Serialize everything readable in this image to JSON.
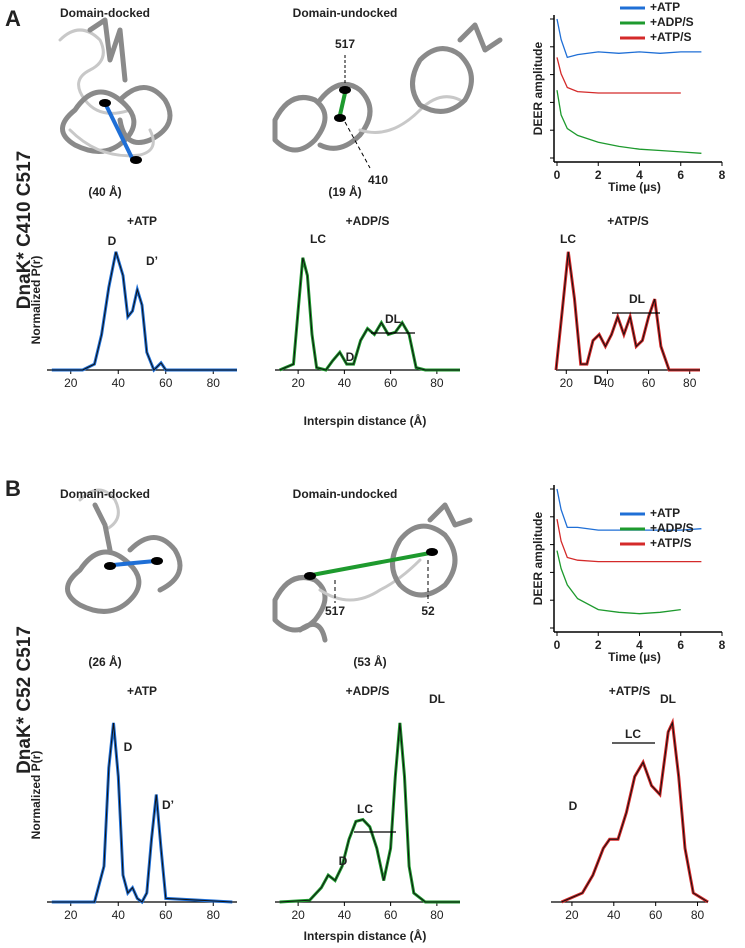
{
  "panels": [
    {
      "letter": "A",
      "construct": "DnaK* C410 C517",
      "structures": [
        {
          "title": "Domain-docked",
          "distance": "(40 Å)"
        },
        {
          "title": "Domain-undocked",
          "distance": "(19 Å)",
          "residues": [
            "517",
            "410"
          ]
        }
      ],
      "deer": {
        "type": "line",
        "ylabel": "DEER amplitude",
        "xlabel": "Time (µs)",
        "xlim": [
          0,
          8
        ],
        "xticks": [
          0,
          2,
          4,
          6,
          8
        ],
        "ylim": [
          0,
          1
        ],
        "series": [
          {
            "name": "+ATP",
            "color": "#1f6fd6",
            "x": [
              0,
              0.2,
              0.5,
              1,
              2,
              3,
              4,
              5,
              6,
              7
            ],
            "values": [
              1.0,
              0.85,
              0.72,
              0.74,
              0.76,
              0.75,
              0.76,
              0.75,
              0.76,
              0.76
            ]
          },
          {
            "name": "+ADP/S",
            "color": "#1e9a2e",
            "x": [
              0,
              0.2,
              0.5,
              1,
              2,
              3,
              4,
              5,
              6,
              7
            ],
            "values": [
              0.48,
              0.3,
              0.2,
              0.15,
              0.1,
              0.07,
              0.05,
              0.04,
              0.03,
              0.02
            ]
          },
          {
            "name": "+ATP/S",
            "color": "#d42a2a",
            "x": [
              0,
              0.2,
              0.5,
              1,
              2,
              3,
              4,
              5,
              6
            ],
            "values": [
              0.72,
              0.6,
              0.5,
              0.47,
              0.46,
              0.46,
              0.46,
              0.46,
              0.46
            ]
          }
        ]
      },
      "distance": {
        "ylabel": "Normalized P(r)",
        "xlabel": "Interspin distance (Å)",
        "charts": [
          {
            "type": "line",
            "title": "+ATP",
            "xlim": [
              10,
              90
            ],
            "xticks": [
              20,
              40,
              60,
              80
            ],
            "ylim": [
              0,
              1.1
            ],
            "color": "#1f6fd6",
            "x": [
              12,
              25,
              30,
              33,
              36,
              39,
              42,
              44,
              46,
              48,
              50,
              52,
              55,
              58,
              60,
              65,
              90
            ],
            "values": [
              0,
              0,
              0.05,
              0.3,
              0.7,
              1.0,
              0.8,
              0.45,
              0.5,
              0.68,
              0.55,
              0.15,
              0,
              0.06,
              0,
              0,
              0
            ],
            "annotations": [
              "D",
              "D’"
            ]
          },
          {
            "type": "line",
            "title": "+ADP/S",
            "xlim": [
              10,
              90
            ],
            "xticks": [
              20,
              40,
              60,
              80
            ],
            "ylim": [
              0,
              1.1
            ],
            "color": "#1e9a2e",
            "x": [
              12,
              18,
              20,
              22,
              24,
              26,
              28,
              32,
              35,
              38,
              41,
              44,
              47,
              50,
              53,
              56,
              59,
              62,
              65,
              68,
              71,
              75,
              90
            ],
            "values": [
              0,
              0.05,
              0.5,
              0.95,
              0.8,
              0.3,
              0.02,
              0,
              0.08,
              0.15,
              0.05,
              0.05,
              0.25,
              0.35,
              0.3,
              0.4,
              0.3,
              0.32,
              0.4,
              0.3,
              0.02,
              0,
              0
            ],
            "annotations": [
              "LC",
              "D",
              "DL"
            ]
          },
          {
            "type": "line",
            "title": "+ATP/S",
            "xlim": [
              15,
              85
            ],
            "xticks": [
              20,
              40,
              60,
              80
            ],
            "ylim": [
              0,
              1.1
            ],
            "color": "#d42a2a",
            "x": [
              15,
              18,
              21,
              24,
              27,
              30,
              33,
              36,
              39,
              42,
              45,
              48,
              51,
              54,
              57,
              60,
              63,
              66,
              70,
              75,
              80,
              85
            ],
            "values": [
              0,
              0.5,
              1.0,
              0.6,
              0.05,
              0.05,
              0.25,
              0.3,
              0.2,
              0.3,
              0.45,
              0.3,
              0.45,
              0.2,
              0.25,
              0.45,
              0.6,
              0.2,
              0,
              0,
              0,
              0
            ],
            "annotations": [
              "LC",
              "D",
              "DL"
            ]
          }
        ]
      }
    },
    {
      "letter": "B",
      "construct": "DnaK* C52 C517",
      "structures": [
        {
          "title": "Domain-docked",
          "distance": "(26 Å)"
        },
        {
          "title": "Domain-undocked",
          "distance": "(53 Å)",
          "residues": [
            "517",
            "52"
          ]
        }
      ],
      "deer": {
        "type": "line",
        "ylabel": "DEER amplitude",
        "xlabel": "Time (µs)",
        "xlim": [
          0,
          8
        ],
        "xticks": [
          0,
          2,
          4,
          6,
          8
        ],
        "ylim": [
          0,
          1
        ],
        "series": [
          {
            "name": "+ATP",
            "color": "#1f6fd6",
            "x": [
              0,
              0.2,
              0.5,
              1,
              2,
              3,
              4,
              5,
              6,
              7
            ],
            "values": [
              1.0,
              0.85,
              0.72,
              0.72,
              0.7,
              0.7,
              0.7,
              0.7,
              0.7,
              0.71
            ]
          },
          {
            "name": "+ADP/S",
            "color": "#1e9a2e",
            "x": [
              0,
              0.2,
              0.5,
              1,
              2,
              3,
              4,
              5,
              6
            ],
            "values": [
              0.55,
              0.42,
              0.3,
              0.2,
              0.12,
              0.1,
              0.09,
              0.1,
              0.12
            ]
          },
          {
            "name": "+ATP/S",
            "color": "#d42a2a",
            "x": [
              0,
              0.2,
              0.5,
              1,
              2,
              3,
              4,
              5,
              6,
              7
            ],
            "values": [
              0.78,
              0.62,
              0.5,
              0.48,
              0.47,
              0.47,
              0.47,
              0.47,
              0.47,
              0.47
            ]
          }
        ]
      },
      "distance": {
        "ylabel": "Normalized P(r)",
        "xlabel": "Interspin distance (Å)",
        "charts": [
          {
            "type": "line",
            "title": "+ATP",
            "xlim": [
              10,
              90
            ],
            "xticks": [
              20,
              40,
              60,
              80
            ],
            "ylim": [
              0,
              1.1
            ],
            "color": "#1f6fd6",
            "x": [
              12,
              30,
              34,
              36,
              38,
              40,
              42,
              44,
              46,
              48,
              50,
              52,
              54,
              56,
              58,
              60,
              88
            ],
            "values": [
              0,
              0,
              0.2,
              0.75,
              1.0,
              0.7,
              0.15,
              0.05,
              0.08,
              0.02,
              0,
              0.05,
              0.35,
              0.6,
              0.3,
              0.02,
              0
            ],
            "annotations": [
              "D",
              "D’"
            ]
          },
          {
            "type": "line",
            "title": "+ADP/S",
            "xlim": [
              10,
              90
            ],
            "xticks": [
              20,
              40,
              60,
              80
            ],
            "ylim": [
              0,
              1.1
            ],
            "color": "#1e9a2e",
            "x": [
              12,
              25,
              30,
              33,
              36,
              39,
              42,
              45,
              48,
              51,
              54,
              57,
              60,
              62,
              64,
              66,
              68,
              70,
              75,
              90
            ],
            "values": [
              0,
              0.01,
              0.08,
              0.15,
              0.12,
              0.2,
              0.35,
              0.45,
              0.46,
              0.42,
              0.3,
              0.12,
              0.3,
              0.7,
              1.0,
              0.7,
              0.2,
              0.05,
              0,
              0
            ],
            "annotations": [
              "DL",
              "LC",
              "D"
            ]
          },
          {
            "type": "line",
            "title": "+ATP/S",
            "xlim": [
              10,
              85
            ],
            "xticks": [
              20,
              40,
              60,
              80
            ],
            "ylim": [
              0,
              1.1
            ],
            "color": "#d42a2a",
            "x": [
              15,
              25,
              30,
              35,
              38,
              42,
              46,
              50,
              54,
              58,
              62,
              66,
              68,
              71,
              74,
              78,
              85
            ],
            "values": [
              0,
              0.05,
              0.15,
              0.3,
              0.35,
              0.35,
              0.5,
              0.7,
              0.78,
              0.65,
              0.6,
              0.95,
              1.0,
              0.7,
              0.3,
              0.05,
              0
            ],
            "annotations": [
              "DL",
              "LC",
              "D"
            ]
          }
        ]
      }
    }
  ]
}
